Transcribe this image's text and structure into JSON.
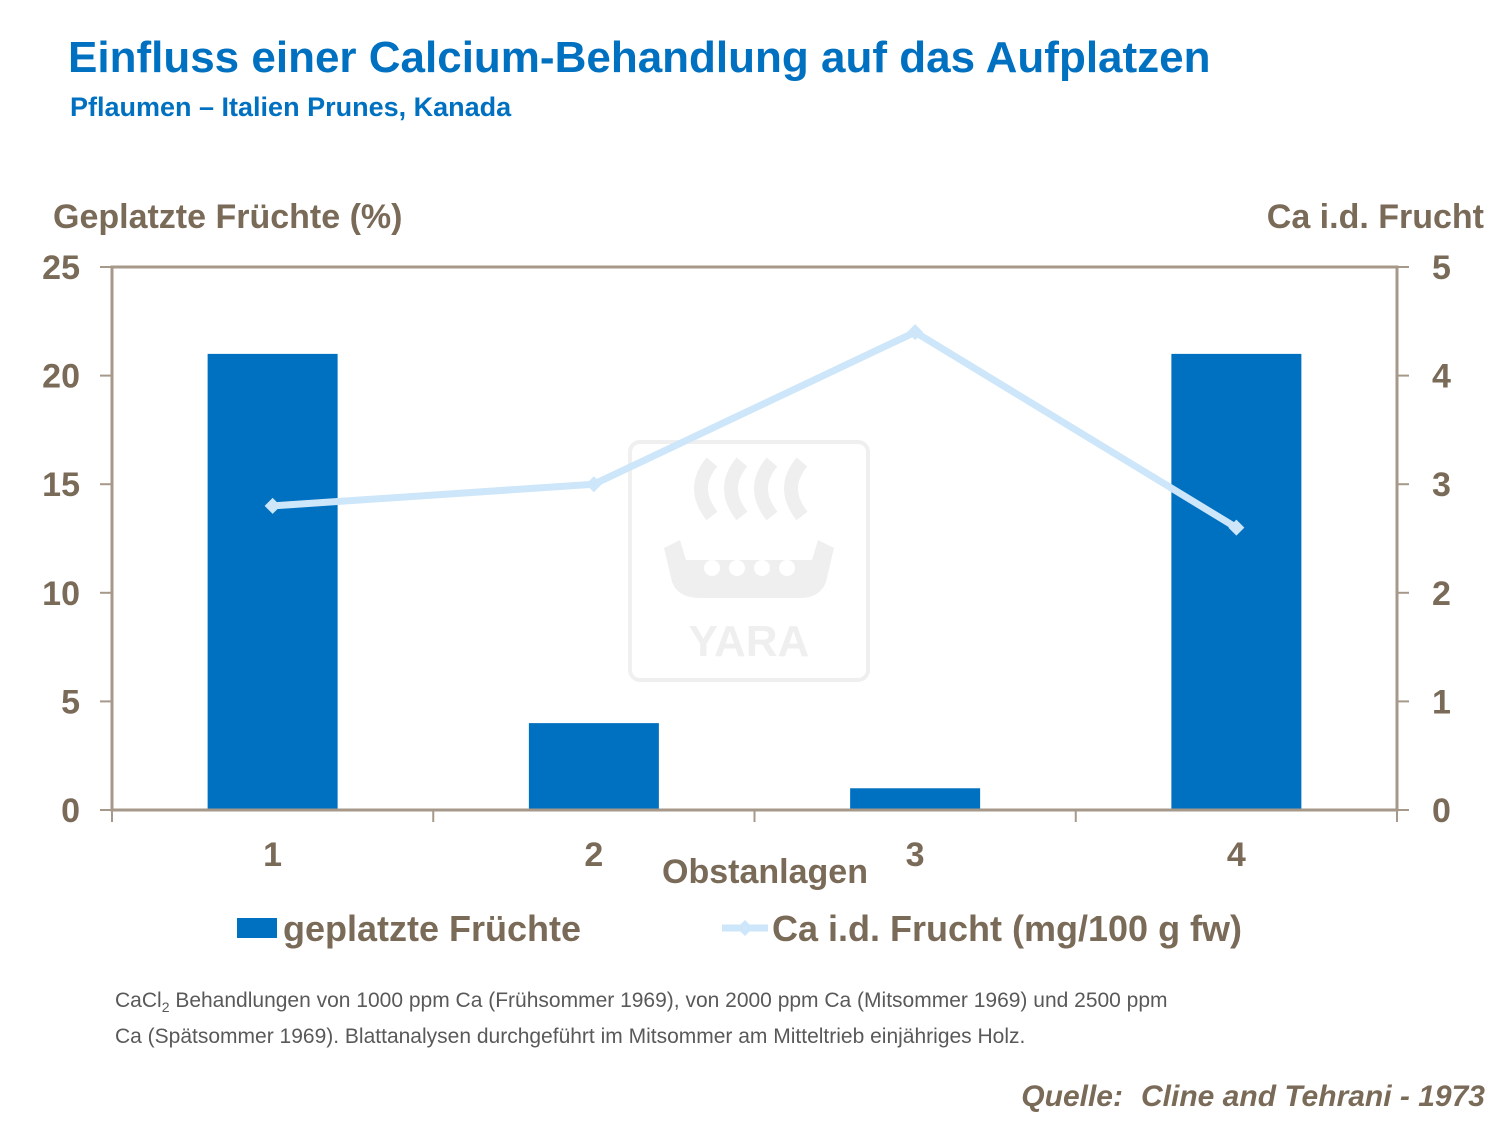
{
  "header": {
    "title": "Einfluss einer Calcium-Behandlung auf das Aufplatzen",
    "subtitle": "Pflaumen – Italien Prunes, Kanada"
  },
  "chart_data": {
    "type": "bar",
    "categories": [
      "1",
      "2",
      "3",
      "4"
    ],
    "xlabel": "Obstanlagen",
    "ylabel": "Geplatzte Früchte (%)",
    "y2label": "Ca i.d. Frucht",
    "ylim": [
      0,
      25
    ],
    "yticks": [
      "0",
      "5",
      "10",
      "15",
      "20",
      "25"
    ],
    "y2lim": [
      0,
      5
    ],
    "y2ticks": [
      "0",
      "1",
      "2",
      "3",
      "4",
      "5"
    ],
    "grid": false,
    "legend_position": "bottom",
    "series": [
      {
        "name": "geplatzte Früchte",
        "type": "bar",
        "axis": "left",
        "color": "#0070C0",
        "values": [
          21,
          4,
          1,
          21
        ]
      },
      {
        "name": "Ca i.d. Frucht (mg/100 g fw)",
        "type": "line",
        "axis": "right",
        "color": "#CDE6FA",
        "values": [
          2.8,
          3.0,
          4.4,
          2.6
        ]
      }
    ]
  },
  "watermark": {
    "text": "YARA",
    "icon": "yara-viking-ship-logo"
  },
  "footnote": {
    "line1_before_sub": "CaCl",
    "line1_sub": "2",
    "line1_after_sub": " Behandlungen von 1000 ppm Ca (Frühsommer 1969), von 2000 ppm Ca (Mitsommer 1969) und 2500 ppm",
    "line2": "Ca (Spätsommer 1969). Blattanalysen durchgeführt im Mitsommer am Mitteltrieb einjähriges Holz."
  },
  "source": {
    "label": "Quelle:",
    "citation": "Cline and Tehrani - 1973"
  },
  "colors": {
    "accent": "#0070C0",
    "axis_text": "#7A6A58",
    "frame": "#A6998A",
    "line": "#CDE6FA"
  }
}
